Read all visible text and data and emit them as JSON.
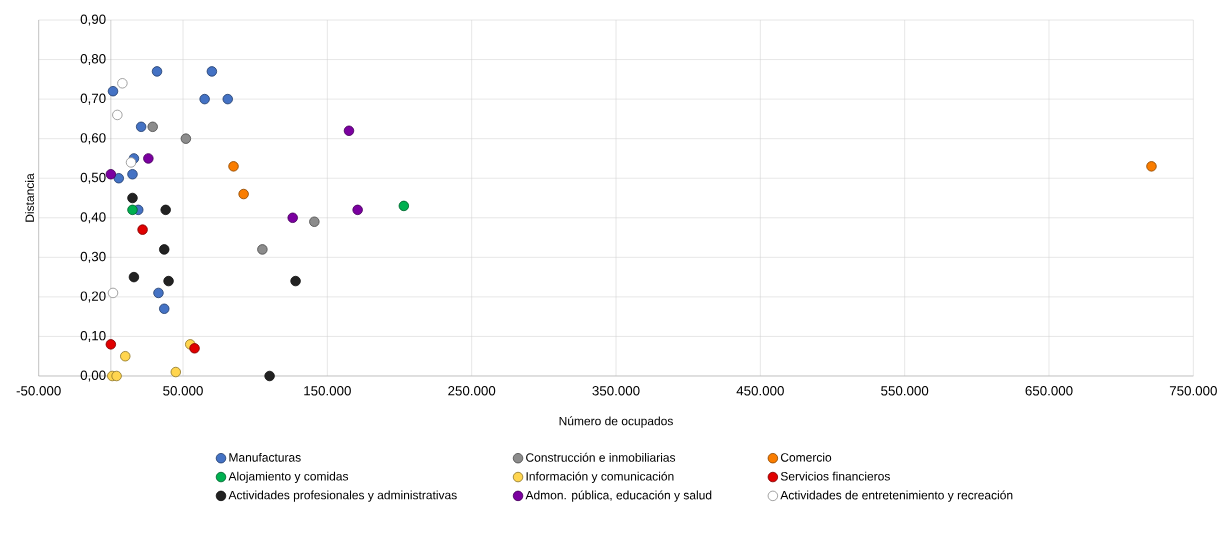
{
  "chart_data": {
    "type": "scatter",
    "xlabel": "Número de ocupados",
    "ylabel": "Distancia",
    "xlim": [
      -50000,
      750000
    ],
    "ylim": [
      0,
      0.9
    ],
    "xticks": [
      {
        "value": -50000,
        "label": "-50.000"
      },
      {
        "value": 50000,
        "label": "50.000"
      },
      {
        "value": 150000,
        "label": "150.000"
      },
      {
        "value": 250000,
        "label": "250.000"
      },
      {
        "value": 350000,
        "label": "350.000"
      },
      {
        "value": 450000,
        "label": "450.000"
      },
      {
        "value": 550000,
        "label": "550.000"
      },
      {
        "value": 650000,
        "label": "650.000"
      },
      {
        "value": 750000,
        "label": "750.000"
      }
    ],
    "yticks": [
      {
        "value": 0,
        "label": "0,00"
      },
      {
        "value": 0.1,
        "label": "0,10"
      },
      {
        "value": 0.2,
        "label": "0,20"
      },
      {
        "value": 0.3,
        "label": "0,30"
      },
      {
        "value": 0.4,
        "label": "0,40"
      },
      {
        "value": 0.5,
        "label": "0,50"
      },
      {
        "value": 0.6,
        "label": "0,60"
      },
      {
        "value": 0.7,
        "label": "0,70"
      },
      {
        "value": 0.8,
        "label": "0,80"
      },
      {
        "value": 0.9,
        "label": "0,90"
      }
    ],
    "grid": true,
    "legend": "bottom",
    "marker": "circle",
    "series": [
      {
        "name": "Manufacturas",
        "color": "#4472c4",
        "x": [
          32000,
          70000,
          1500,
          65000,
          81000,
          21000,
          16000,
          5500,
          15000,
          19000,
          33000,
          37000
        ],
        "values": [
          0.77,
          0.77,
          0.72,
          0.7,
          0.7,
          0.63,
          0.55,
          0.5,
          0.51,
          0.42,
          0.21,
          0.17
        ]
      },
      {
        "name": "Construcción e inmobiliarias",
        "color": "#8c8c8c",
        "x": [
          29000,
          52000,
          105000,
          141000
        ],
        "values": [
          0.63,
          0.6,
          0.32,
          0.39
        ]
      },
      {
        "name": "Comercio",
        "color": "#fa7d00",
        "x": [
          85000,
          92000,
          721000
        ],
        "values": [
          0.53,
          0.46,
          0.53
        ]
      },
      {
        "name": "Alojamiento y comidas",
        "color": "#00b050",
        "x": [
          15000,
          203000
        ],
        "values": [
          0.42,
          0.43
        ]
      },
      {
        "name": "Información y comunicación",
        "color": "#ffd54f",
        "x": [
          55000,
          10000,
          1000,
          4000,
          45000
        ],
        "values": [
          0.08,
          0.05,
          0.0,
          0.0,
          0.01
        ]
      },
      {
        "name": "Servicios financieros",
        "color": "#e00000",
        "x": [
          0,
          58000,
          22000
        ],
        "values": [
          0.08,
          0.07,
          0.37
        ]
      },
      {
        "name": "Actividades profesionales y administrativas",
        "color": "#222222",
        "x": [
          15000,
          38000,
          37000,
          16000,
          40000,
          128000,
          110000
        ],
        "values": [
          0.45,
          0.42,
          0.32,
          0.25,
          0.24,
          0.24,
          0.0
        ]
      },
      {
        "name": "Admon. pública, educación y salud",
        "color": "#7b00a0",
        "x": [
          0,
          26000,
          165000,
          126000,
          171000
        ],
        "values": [
          0.51,
          0.55,
          0.62,
          0.4,
          0.42
        ]
      },
      {
        "name": "Actividades de entretenimiento y recreación",
        "color": "#ffffff",
        "x": [
          8000,
          4500,
          14000,
          1500
        ],
        "values": [
          0.74,
          0.66,
          0.54,
          0.21
        ]
      }
    ]
  }
}
